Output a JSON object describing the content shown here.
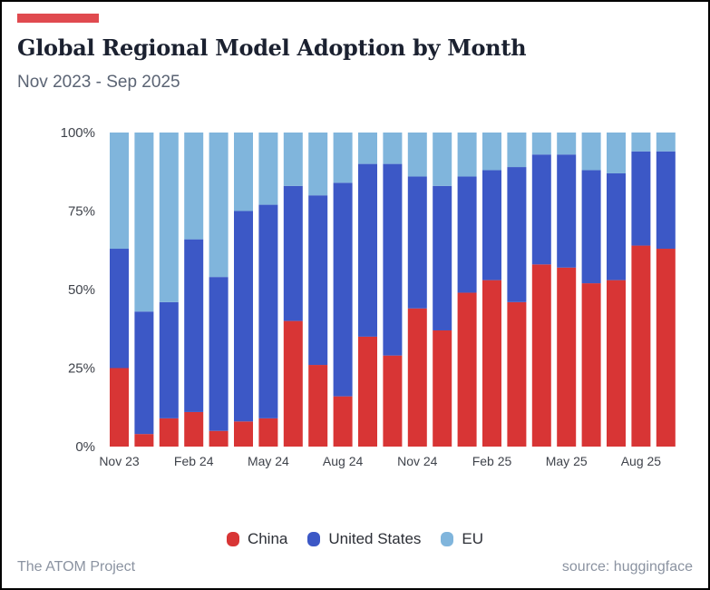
{
  "header": {
    "title": "Global Regional Model Adoption by Month",
    "subtitle": "Nov 2023 - Sep 2025",
    "accent_color": "#e04a4f"
  },
  "footer": {
    "left": "The ATOM Project",
    "right": "source: huggingface"
  },
  "legend": [
    {
      "label": "China",
      "color": "#d83535"
    },
    {
      "label": "United States",
      "color": "#3c58c6"
    },
    {
      "label": "EU",
      "color": "#80b5dc"
    }
  ],
  "chart_data": {
    "type": "bar",
    "stacked": true,
    "title": "Global Regional Model Adoption by Month",
    "subtitle": "Nov 2023 - Sep 2025",
    "xlabel": "",
    "ylabel": "",
    "ylim": [
      0,
      100
    ],
    "yticks": [
      "0%",
      "25%",
      "50%",
      "75%",
      "100%"
    ],
    "ytick_values": [
      0,
      25,
      50,
      75,
      100
    ],
    "categories": [
      "Nov 23",
      "Dec 23",
      "Jan 24",
      "Feb 24",
      "Mar 24",
      "Apr 24",
      "May 24",
      "Jun 24",
      "Jul 24",
      "Aug 24",
      "Sep 24",
      "Oct 24",
      "Nov 24",
      "Dec 24",
      "Jan 25",
      "Feb 25",
      "Mar 25",
      "Apr 25",
      "May 25",
      "Jun 25",
      "Jul 25",
      "Aug 25",
      "Sep 25"
    ],
    "xtick_labels": [
      {
        "index": 0,
        "label": "Nov 23"
      },
      {
        "index": 3,
        "label": "Feb 24"
      },
      {
        "index": 6,
        "label": "May 24"
      },
      {
        "index": 9,
        "label": "Aug 24"
      },
      {
        "index": 12,
        "label": "Nov 24"
      },
      {
        "index": 15,
        "label": "Feb 25"
      },
      {
        "index": 18,
        "label": "May 25"
      },
      {
        "index": 21,
        "label": "Aug 25"
      }
    ],
    "series": [
      {
        "name": "China",
        "color": "#d83535",
        "values": [
          25,
          4,
          9,
          11,
          5,
          8,
          9,
          40,
          26,
          16,
          35,
          29,
          44,
          37,
          49,
          53,
          46,
          58,
          57,
          52,
          53,
          64,
          63
        ]
      },
      {
        "name": "United States",
        "color": "#3c58c6",
        "values": [
          38,
          39,
          37,
          55,
          49,
          67,
          68,
          43,
          54,
          68,
          55,
          61,
          42,
          46,
          37,
          35,
          43,
          35,
          36,
          36,
          34,
          30,
          31
        ]
      },
      {
        "name": "EU",
        "color": "#80b5dc",
        "values": [
          37,
          57,
          54,
          34,
          46,
          25,
          23,
          17,
          20,
          16,
          10,
          10,
          14,
          17,
          14,
          12,
          11,
          7,
          7,
          12,
          13,
          6,
          6
        ]
      }
    ],
    "grid": false,
    "legend_position": "bottom-center"
  }
}
